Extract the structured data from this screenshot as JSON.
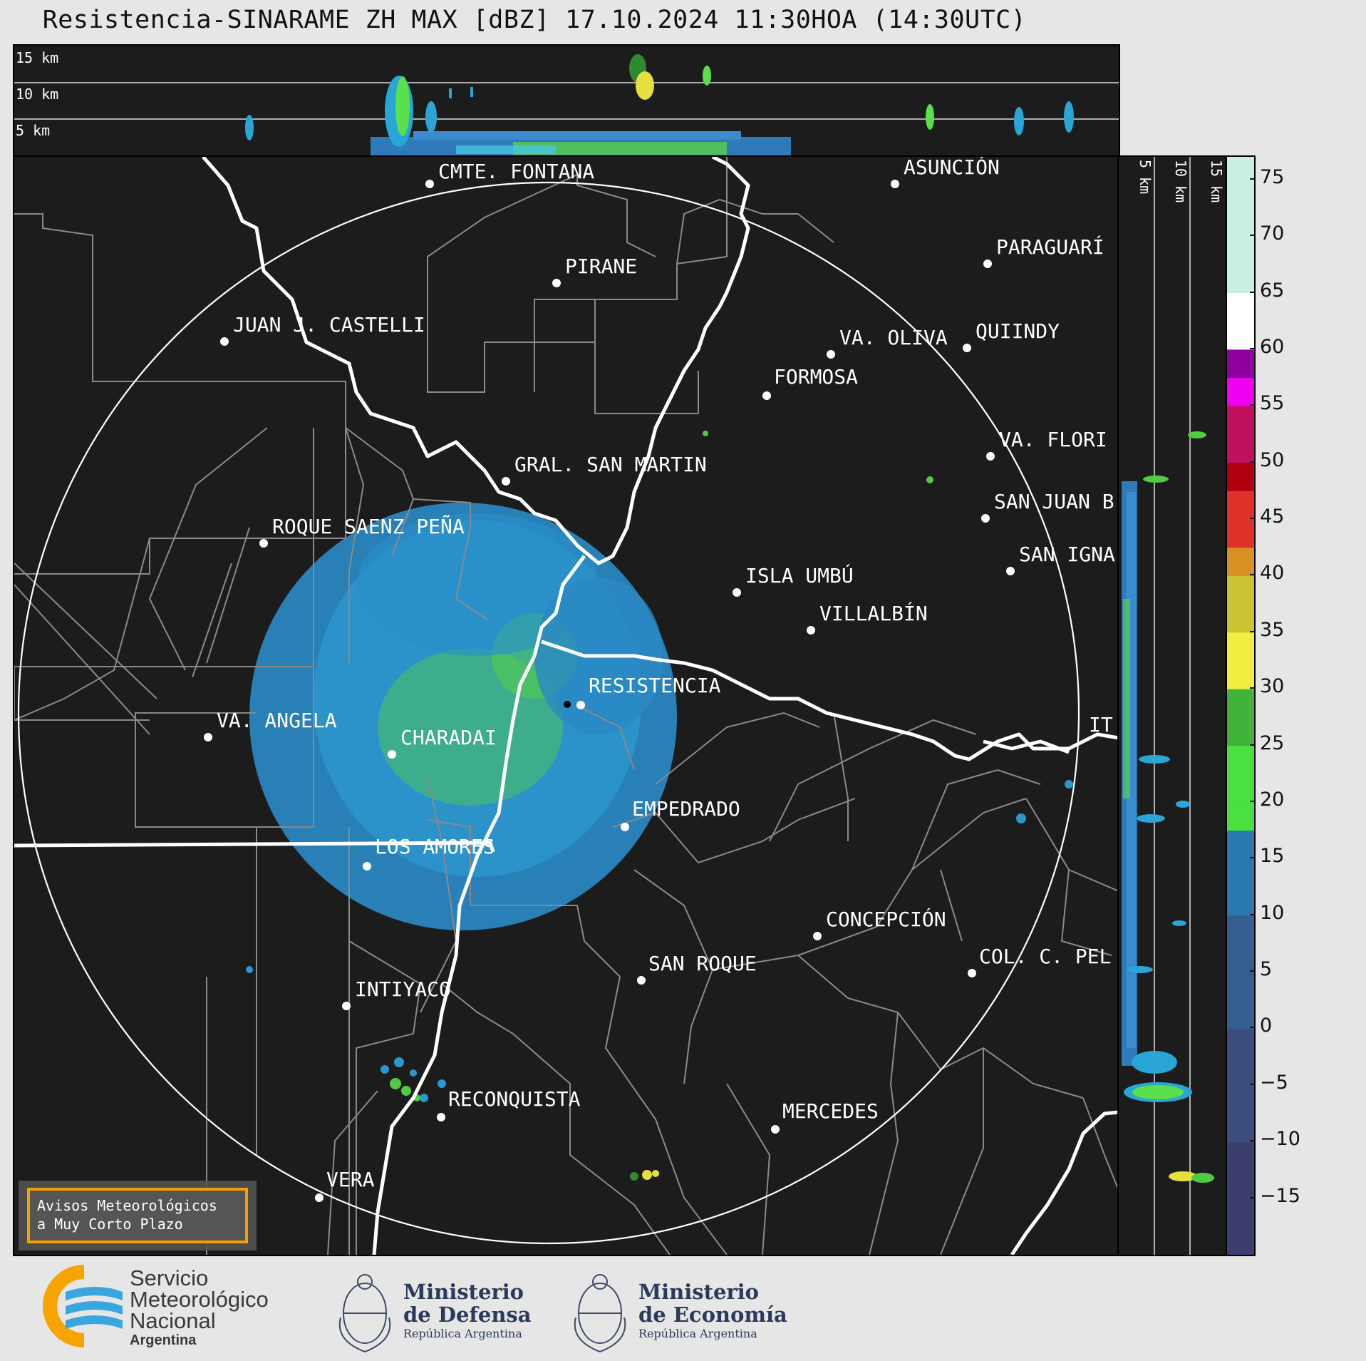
{
  "title": "Resistencia-SINARAME ZH MAX [dBZ] 17.10.2024 11:30HOA (14:30UTC)",
  "top_panel": {
    "height_labels": [
      "15 km",
      "10 km",
      "5 km"
    ]
  },
  "side_panel": {
    "height_labels": [
      "5 km",
      "10 km",
      "15 km"
    ]
  },
  "map": {
    "radar_site": "RESISTENCIA",
    "cities": [
      {
        "name": "CMTE. FONTANA"
      },
      {
        "name": "ASUNCIÓN"
      },
      {
        "name": "PARAGUARÍ"
      },
      {
        "name": "PIRANE"
      },
      {
        "name": "JUAN J. CASTELLI"
      },
      {
        "name": "VA. OLIVA"
      },
      {
        "name": "QUIINDY"
      },
      {
        "name": "FORMOSA"
      },
      {
        "name": "VA. FLORI"
      },
      {
        "name": "GRAL. SAN MARTIN"
      },
      {
        "name": "SAN JUAN B"
      },
      {
        "name": "ROQUE SAENZ PEÑA"
      },
      {
        "name": "SAN IGNA"
      },
      {
        "name": "ISLA UMBÚ"
      },
      {
        "name": "VILLALBÍN"
      },
      {
        "name": "RESISTENCIA"
      },
      {
        "name": "VA. ANGELA"
      },
      {
        "name": "CHARADAI"
      },
      {
        "name": "IT"
      },
      {
        "name": "EMPEDRADO"
      },
      {
        "name": "LOS AMORES"
      },
      {
        "name": "CONCEPCIÓN"
      },
      {
        "name": "SAN ROQUE"
      },
      {
        "name": "COL. C. PEL"
      },
      {
        "name": "INTIYACO"
      },
      {
        "name": "RECONQUISTA"
      },
      {
        "name": "MERCEDES"
      },
      {
        "name": "VERA"
      }
    ],
    "warning_box": {
      "line1": "Avisos Meteorológicos",
      "line2": "a Muy Corto Plazo",
      "border_color": "#f5a000"
    }
  },
  "colorbar": {
    "ticks": [
      "75",
      "70",
      "65",
      "60",
      "55",
      "50",
      "45",
      "40",
      "35",
      "30",
      "25",
      "20",
      "15",
      "10",
      "5",
      "0",
      "−5",
      "−10",
      "−15"
    ],
    "range": [
      -20,
      77
    ]
  },
  "logos": {
    "smn": {
      "line1": "Servicio",
      "line2": "Meteorológico",
      "line3": "Nacional",
      "line4": "Argentina"
    },
    "defensa": {
      "line1": "Ministerio",
      "line2": "de Defensa",
      "line3": "República Argentina"
    },
    "economia": {
      "line1": "Ministerio",
      "line2": "de Economía",
      "line3": "República Argentina"
    }
  }
}
